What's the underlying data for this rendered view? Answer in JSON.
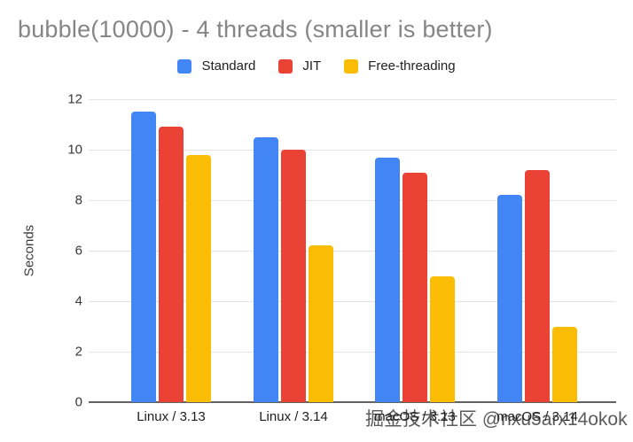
{
  "title": "bubble(10000) - 4 threads (smaller is better)",
  "watermark": {
    "text": "掘金技术社区 @nxu5arx14okok"
  },
  "chart_data": {
    "type": "bar",
    "title": "bubble(10000) - 4 threads (smaller is better)",
    "categories": [
      "Linux / 3.13",
      "Linux / 3.14",
      "macOS / 3.13",
      "macOS / 3.14"
    ],
    "series": [
      {
        "name": "Standard",
        "color": "#4285F4",
        "values": [
          11.5,
          10.5,
          9.7,
          8.2
        ]
      },
      {
        "name": "JIT",
        "color": "#EA4335",
        "values": [
          10.9,
          10.0,
          9.1,
          9.2
        ]
      },
      {
        "name": "Free-threading",
        "color": "#FBBC04",
        "values": [
          9.8,
          6.2,
          5.0,
          3.0
        ]
      }
    ],
    "xlabel": "",
    "ylabel": "Seconds",
    "ylim": [
      0,
      12
    ],
    "yticks": [
      0,
      2,
      4,
      6,
      8,
      10,
      12
    ],
    "grid": true,
    "legend_position": "top"
  }
}
